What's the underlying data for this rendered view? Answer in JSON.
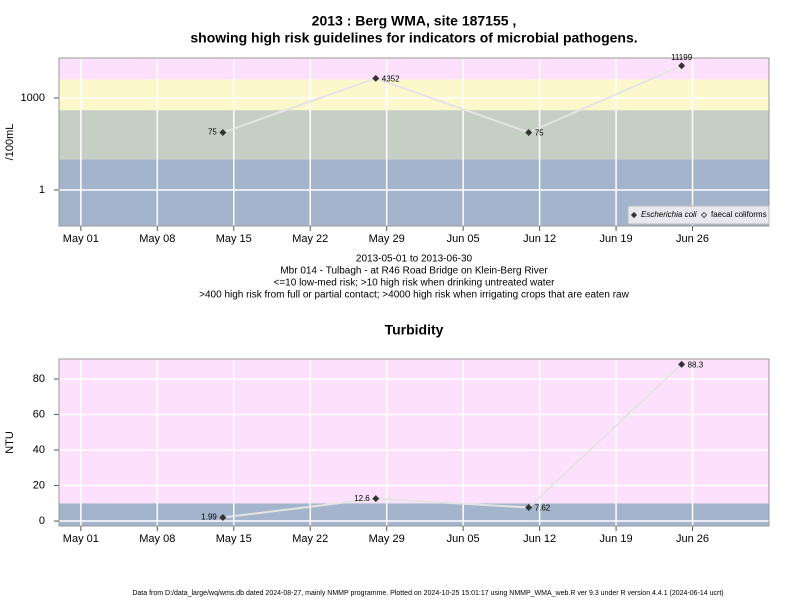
{
  "chart_data": [
    {
      "type": "line",
      "title": [
        "2013 : Berg WMA, site 187155 ,",
        "showing high risk guidelines for indicators of microbial pathogens."
      ],
      "ylabel": "/100mL",
      "x": [
        "2013-05-14",
        "2013-05-28",
        "2013-06-11",
        "2013-06-25"
      ],
      "series": [
        {
          "name": "Escherichia coli",
          "color": "#333333",
          "values": [
            75,
            4352,
            75,
            11199
          ]
        },
        {
          "name": "faecal coliforms",
          "color": "#333333",
          "values": [
            null,
            null,
            null,
            null
          ]
        }
      ],
      "xlim": [
        "2013-04-29",
        "2013-07-03"
      ],
      "xticks": [
        {
          "value": "2013-05-01",
          "label": "May 01"
        },
        {
          "value": "2013-05-08",
          "label": "May 08"
        },
        {
          "value": "2013-05-15",
          "label": "May 15"
        },
        {
          "value": "2013-05-22",
          "label": "May 22"
        },
        {
          "value": "2013-05-29",
          "label": "May 29"
        },
        {
          "value": "2013-06-05",
          "label": "Jun 05"
        },
        {
          "value": "2013-06-12",
          "label": "Jun 12"
        },
        {
          "value": "2013-06-19",
          "label": "Jun 19"
        },
        {
          "value": "2013-06-26",
          "label": "Jun 26"
        }
      ],
      "ylim": [
        0.067,
        20000
      ],
      "yticks": [
        1,
        1000
      ],
      "log_scale": true,
      "grid": true,
      "band_breaks": [
        10,
        400,
        4000
      ],
      "band_colors": [
        "#a3b4cc",
        "#c5cfc3",
        "#fdf8cb",
        "#fde1fc"
      ],
      "line_color": "#e4e4e4",
      "legend": "bottom-right",
      "caption": [
        "2013-05-01 to 2013-06-30",
        "Mbr 014 - Tulbagh - at R46 Road Bridge on Klein-Berg River",
        "<=10 low-med risk; >10 high risk when drinking untreated water",
        ">400 high risk from full or partial contact; >4000 high risk when irrigating crops that are eaten raw"
      ]
    },
    {
      "type": "line",
      "title": [
        "Turbidity"
      ],
      "ylabel": "NTU",
      "x": [
        "2013-05-14",
        "2013-05-28",
        "2013-06-11",
        "2013-06-25"
      ],
      "values": [
        1.99,
        12.6,
        7.62,
        88.3
      ],
      "color": "#333333",
      "xlim": [
        "2013-04-29",
        "2013-07-03"
      ],
      "xticks": [
        {
          "value": "2013-05-01",
          "label": "May 01"
        },
        {
          "value": "2013-05-08",
          "label": "May 08"
        },
        {
          "value": "2013-05-15",
          "label": "May 15"
        },
        {
          "value": "2013-05-22",
          "label": "May 22"
        },
        {
          "value": "2013-05-29",
          "label": "May 29"
        },
        {
          "value": "2013-06-05",
          "label": "Jun 05"
        },
        {
          "value": "2013-06-12",
          "label": "Jun 12"
        },
        {
          "value": "2013-06-19",
          "label": "Jun 19"
        },
        {
          "value": "2013-06-26",
          "label": "Jun 26"
        }
      ],
      "ylim": [
        -2.8,
        91.3
      ],
      "yticks": [
        0,
        20,
        40,
        60,
        80
      ],
      "log_scale": false,
      "grid": true,
      "band_breaks": [
        10
      ],
      "band_colors": [
        "#a3b4cc",
        "#fde1fc"
      ],
      "line_color": "#e4e4e4"
    }
  ],
  "footer": "Data from D:/data_large/wq/wms.db dated 2024-08-27, mainly NMMP programme. Plotted on 2024-10-25 15:01:17 using NMMP_WMA_web.R ver 9.3 under R version 4.4.1 (2024-06-14 ucrt)"
}
